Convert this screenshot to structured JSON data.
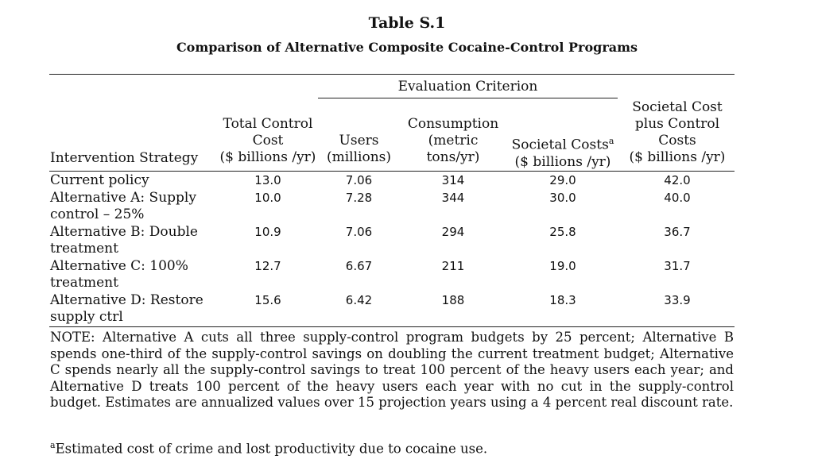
{
  "title": "Table S.1",
  "subtitle": "Comparison of Alternative Composite Cocaine-Control Programs",
  "group_header": "Evaluation Criterion",
  "columns": {
    "strategy": "Intervention Strategy",
    "control_cost": [
      "Total Control",
      "Cost",
      "($ billions /yr)"
    ],
    "users": [
      "Users",
      "(millions)"
    ],
    "consumption": [
      "Consumption",
      "(metric",
      "tons/yr)"
    ],
    "societal": [
      "Societal Costs",
      "a",
      "($ billions /yr)"
    ],
    "total": [
      "Societal Cost",
      "plus Control",
      "Costs",
      "($ billions /yr)"
    ]
  },
  "rows": [
    {
      "strategy": "Current policy",
      "control_cost": "13.0",
      "users": "7.06",
      "consumption": "314",
      "societal": "29.0",
      "total": "42.0"
    },
    {
      "strategy": "Alternative A: Supply control – 25%",
      "control_cost": "10.0",
      "users": "7.28",
      "consumption": "344",
      "societal": "30.0",
      "total": "40.0"
    },
    {
      "strategy": "Alternative B: Double treatment",
      "control_cost": "10.9",
      "users": "7.06",
      "consumption": "294",
      "societal": "25.8",
      "total": "36.7"
    },
    {
      "strategy": "Alternative C: 100% treatment",
      "control_cost": "12.7",
      "users": "6.67",
      "consumption": "211",
      "societal": "19.0",
      "total": "31.7"
    },
    {
      "strategy": "Alternative D: Restore supply ctrl",
      "control_cost": "15.6",
      "users": "6.42",
      "consumption": "188",
      "societal": "18.3",
      "total": "33.9"
    }
  ],
  "note": "NOTE: Alternative A cuts all three supply-control program budgets by 25 percent; Alternative B spends one-third of the supply-control savings on doubling the current treatment budget; Alternative C spends nearly all the supply-control savings to treat 100 percent of the heavy users each year; and Alternative D treats 100 percent of the heavy users each year with no cut in the supply-control budget.  Estimates are annualized values over 15 projection years using a 4 percent real discount rate.",
  "footnote_marker": "a",
  "footnote": "Estimated cost of crime and lost productivity due to cocaine use."
}
